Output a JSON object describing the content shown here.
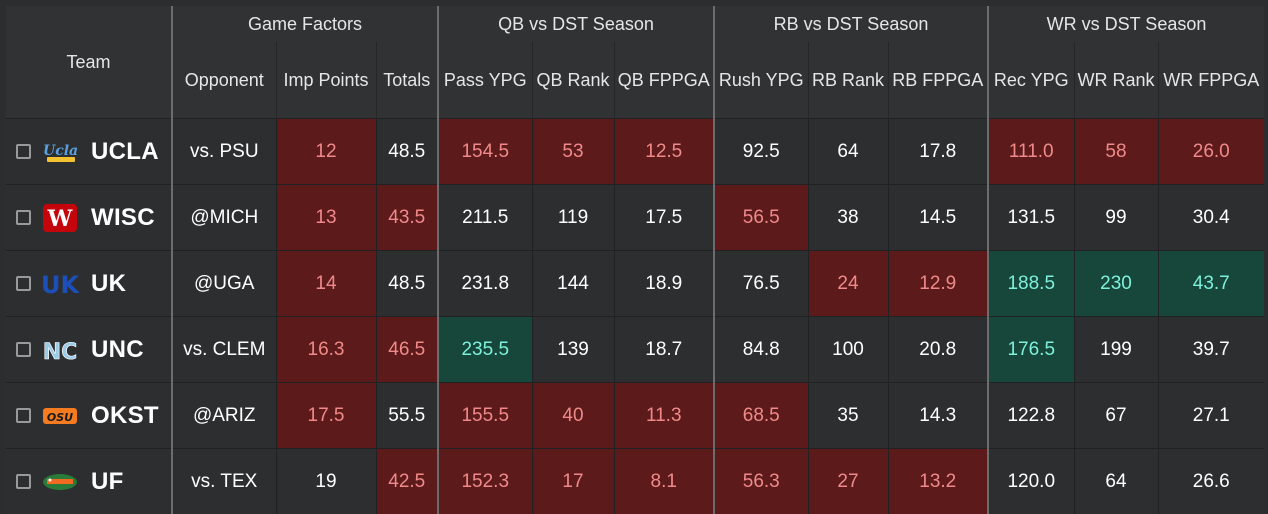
{
  "header": {
    "groups": {
      "game_factors": "Game Factors",
      "qb": "QB vs DST Season",
      "rb": "RB vs DST Season",
      "wr": "WR vs DST Season"
    },
    "columns": {
      "team": "Team",
      "opponent": "Opponent",
      "imp_points": "Imp Points",
      "totals": "Totals",
      "pass_ypg": "Pass YPG",
      "qb_rank": "QB Rank",
      "qb_fppga": "QB FPPGA",
      "rush_ypg": "Rush YPG",
      "rb_rank": "RB Rank",
      "rb_fppga": "RB FPPGA",
      "rec_ypg": "Rec YPG",
      "wr_rank": "WR Rank",
      "wr_fppga": "WR FPPGA"
    }
  },
  "colors": {
    "red_cell": "#5c1a1a",
    "red_text": "#f08a8a",
    "green_cell": "#16473a",
    "green_text": "#7ff0dc"
  },
  "rows": [
    {
      "team": "UCLA",
      "logo": "ucla-logo-icon",
      "opponent": "vs. PSU",
      "imp_points": "12",
      "totals": "48.5",
      "pass_ypg": "154.5",
      "qb_rank": "53",
      "qb_fppga": "12.5",
      "rush_ypg": "92.5",
      "rb_rank": "64",
      "rb_fppga": "17.8",
      "rec_ypg": "111.0",
      "wr_rank": "58",
      "wr_fppga": "26.0",
      "hl": {
        "imp_points": "red",
        "pass_ypg": "red",
        "qb_rank": "red",
        "qb_fppga": "red",
        "rec_ypg": "red",
        "wr_rank": "red",
        "wr_fppga": "red"
      }
    },
    {
      "team": "WISC",
      "logo": "wisc-logo-icon",
      "opponent": "@MICH",
      "imp_points": "13",
      "totals": "43.5",
      "pass_ypg": "211.5",
      "qb_rank": "119",
      "qb_fppga": "17.5",
      "rush_ypg": "56.5",
      "rb_rank": "38",
      "rb_fppga": "14.5",
      "rec_ypg": "131.5",
      "wr_rank": "99",
      "wr_fppga": "30.4",
      "hl": {
        "imp_points": "red",
        "totals": "red",
        "rush_ypg": "red"
      }
    },
    {
      "team": "UK",
      "logo": "uk-logo-icon",
      "opponent": "@UGA",
      "imp_points": "14",
      "totals": "48.5",
      "pass_ypg": "231.8",
      "qb_rank": "144",
      "qb_fppga": "18.9",
      "rush_ypg": "76.5",
      "rb_rank": "24",
      "rb_fppga": "12.9",
      "rec_ypg": "188.5",
      "wr_rank": "230",
      "wr_fppga": "43.7",
      "hl": {
        "imp_points": "red",
        "rb_rank": "red",
        "rb_fppga": "red",
        "rec_ypg": "green",
        "wr_rank": "green",
        "wr_fppga": "green"
      }
    },
    {
      "team": "UNC",
      "logo": "unc-logo-icon",
      "opponent": "vs. CLEM",
      "imp_points": "16.3",
      "totals": "46.5",
      "pass_ypg": "235.5",
      "qb_rank": "139",
      "qb_fppga": "18.7",
      "rush_ypg": "84.8",
      "rb_rank": "100",
      "rb_fppga": "20.8",
      "rec_ypg": "176.5",
      "wr_rank": "199",
      "wr_fppga": "39.7",
      "hl": {
        "imp_points": "red",
        "totals": "red",
        "pass_ypg": "green",
        "rec_ypg": "green"
      }
    },
    {
      "team": "OKST",
      "logo": "okst-logo-icon",
      "opponent": "@ARIZ",
      "imp_points": "17.5",
      "totals": "55.5",
      "pass_ypg": "155.5",
      "qb_rank": "40",
      "qb_fppga": "11.3",
      "rush_ypg": "68.5",
      "rb_rank": "35",
      "rb_fppga": "14.3",
      "rec_ypg": "122.8",
      "wr_rank": "67",
      "wr_fppga": "27.1",
      "hl": {
        "imp_points": "red",
        "pass_ypg": "red",
        "qb_rank": "red",
        "qb_fppga": "red",
        "rush_ypg": "red"
      }
    },
    {
      "team": "UF",
      "logo": "uf-logo-icon",
      "opponent": "vs. TEX",
      "imp_points": "19",
      "totals": "42.5",
      "pass_ypg": "152.3",
      "qb_rank": "17",
      "qb_fppga": "8.1",
      "rush_ypg": "56.3",
      "rb_rank": "27",
      "rb_fppga": "13.2",
      "rec_ypg": "120.0",
      "wr_rank": "64",
      "wr_fppga": "26.6",
      "hl": {
        "totals": "red",
        "pass_ypg": "red",
        "qb_rank": "red",
        "qb_fppga": "red",
        "rush_ypg": "red",
        "rb_rank": "red",
        "rb_fppga": "red"
      }
    }
  ]
}
